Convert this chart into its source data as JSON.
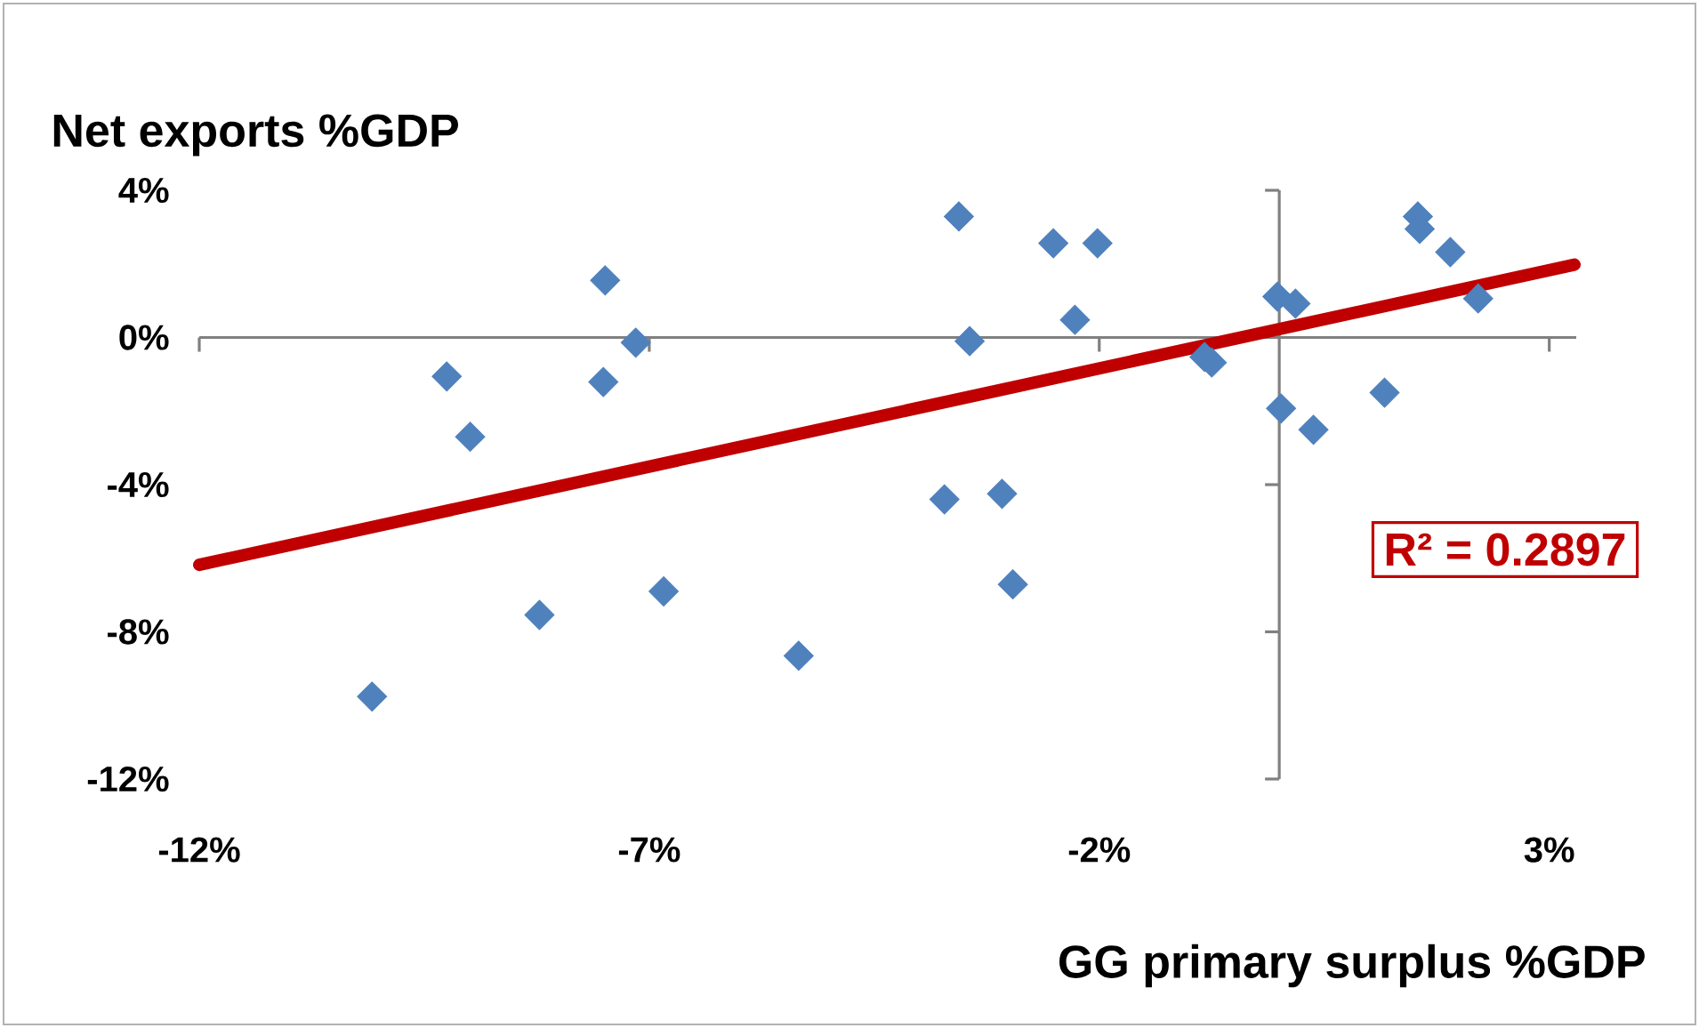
{
  "chart_data": {
    "type": "scatter",
    "xlabel": "GG primary surplus %GDP",
    "ylabel": "Net exports %GDP",
    "marker": "diamond",
    "xlim": [
      -12,
      3.3
    ],
    "ylim": [
      -12,
      4
    ],
    "xticks": [
      {
        "value": -12,
        "label": "-12%"
      },
      {
        "value": -7,
        "label": "-7%"
      },
      {
        "value": -2,
        "label": "-2%"
      },
      {
        "value": 3,
        "label": "3%"
      }
    ],
    "yticks": [
      {
        "value": -12,
        "label": "-12%"
      },
      {
        "value": -8,
        "label": "-8%"
      },
      {
        "value": -4,
        "label": "-4%"
      },
      {
        "value": 0,
        "label": "0%"
      },
      {
        "value": 4,
        "label": "4%"
      }
    ],
    "series": [
      {
        "color": "#4f81bd",
        "x": [
          -10.08,
          -9.25,
          -8.99,
          -8.22,
          -7.49,
          -7.51,
          -7.15,
          -6.84,
          -5.34,
          -3.72,
          -3.56,
          -3.44,
          -3.08,
          -2.96,
          -2.51,
          -2.27,
          -2.02,
          -0.83,
          -0.75,
          -0.02,
          0.18,
          0.02,
          0.38,
          1.17,
          1.54,
          1.56,
          1.9,
          2.21
        ],
        "values": [
          -9.76,
          -1.06,
          -2.7,
          -7.54,
          1.55,
          -1.21,
          -0.14,
          -6.9,
          -8.65,
          -4.4,
          3.29,
          -0.1,
          -4.25,
          -6.71,
          2.56,
          0.48,
          2.56,
          -0.53,
          -0.68,
          1.11,
          0.92,
          -1.93,
          -2.51,
          -1.5,
          3.29,
          2.95,
          2.32,
          1.06
        ]
      },
      {
        "type": "line",
        "marker": "none",
        "color": "#c00000",
        "x": [
          -12,
          3.28
        ],
        "values": [
          -6.18,
          1.98
        ]
      }
    ],
    "annotations": [
      "R² = 0.2897"
    ]
  }
}
